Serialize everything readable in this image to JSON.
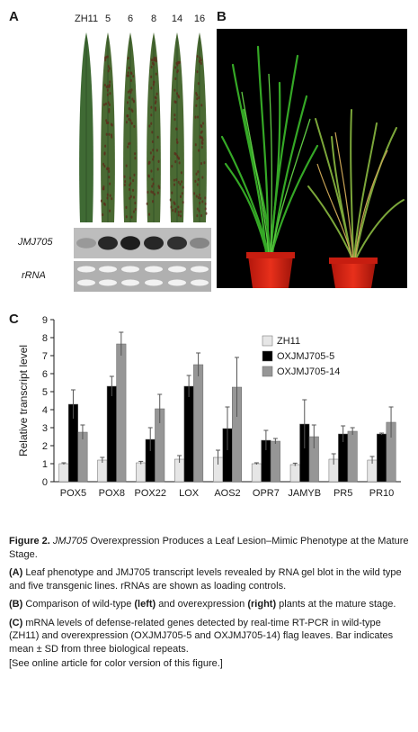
{
  "panel_a": {
    "letter": "A",
    "lane_labels": [
      "ZH11",
      "5",
      "6",
      "8",
      "14",
      "16"
    ],
    "blot_labels": {
      "jmj": "JMJ705",
      "rrna": "rRNA"
    },
    "jmj_band_intensity": [
      0.25,
      0.85,
      0.9,
      0.85,
      0.8,
      0.35
    ]
  },
  "panel_b": {
    "letter": "B"
  },
  "panel_c": {
    "letter": "C"
  },
  "chart_data": {
    "type": "bar",
    "categories": [
      "POX5",
      "POX8",
      "POX22",
      "LOX",
      "AOS2",
      "OPR7",
      "JAMYB",
      "PR5",
      "PR10"
    ],
    "series": [
      {
        "name": "ZH11",
        "values": [
          1.0,
          1.2,
          1.05,
          1.25,
          1.35,
          1.0,
          0.95,
          1.25,
          1.2
        ],
        "errors": [
          0.05,
          0.15,
          0.08,
          0.2,
          0.4,
          0.05,
          0.08,
          0.3,
          0.2
        ],
        "color": "#e6e6e6"
      },
      {
        "name": "OXJMJ705-5",
        "values": [
          4.3,
          5.3,
          2.35,
          5.3,
          2.95,
          2.3,
          3.2,
          2.65,
          2.65
        ],
        "errors": [
          0.8,
          0.55,
          0.65,
          0.6,
          1.2,
          0.55,
          1.35,
          0.45,
          0.05
        ],
        "color": "#000000"
      },
      {
        "name": "OXJMJ705-14",
        "values": [
          2.75,
          7.65,
          4.05,
          6.5,
          5.25,
          2.25,
          2.5,
          2.8,
          3.3
        ],
        "errors": [
          0.4,
          0.65,
          0.8,
          0.65,
          1.65,
          0.15,
          0.65,
          0.2,
          0.85
        ],
        "color": "#969696"
      }
    ],
    "ylabel": "Relative transcript level",
    "ylim": [
      0,
      9
    ],
    "yticks": [
      "0",
      "1",
      "2",
      "3",
      "4",
      "5",
      "6",
      "7",
      "8",
      "9"
    ],
    "legend_position": "top-right",
    "grid": false
  },
  "caption": {
    "figure_label": "Figure 2.",
    "title_italic": "JMJ705",
    "title_rest": " Overexpression Produces a Leaf Lesion–Mimic Phenotype at the Mature Stage.",
    "a_label": "(A)",
    "a_text": " Leaf phenotype and JMJ705 transcript levels revealed by RNA gel blot in the wild type and five transgenic lines. rRNAs are shown as loading controls.",
    "b_label": "(B)",
    "b_text_1": " Comparison of wild-type ",
    "b_left": "(left)",
    "b_text_2": " and overexpression ",
    "b_right": "(right)",
    "b_text_3": " plants at the mature stage.",
    "c_label": "(C)",
    "c_text": " mRNA levels of defense-related genes detected by real-time RT-PCR in wild-type (ZH11) and overexpression (OXJMJ705-5 and OXJMJ705-14) flag leaves. Bar indicates mean ± SD from three biological repeats.",
    "online_note": "[See online article for color version of this figure.]"
  }
}
